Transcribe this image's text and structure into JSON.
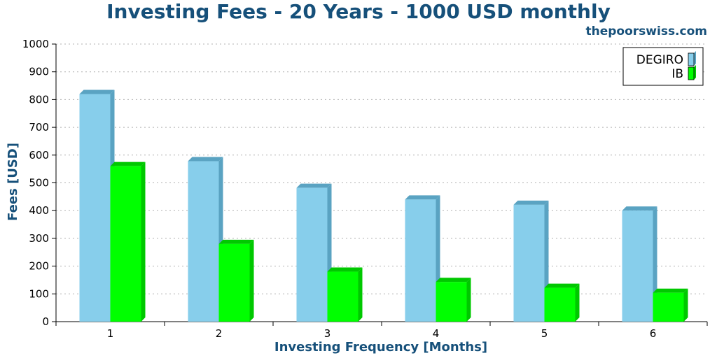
{
  "header": {
    "title": "Investing Fees - 20 Years - 1000 USD monthly",
    "source": "thepoorswiss.com"
  },
  "chart_data": {
    "type": "bar",
    "title": "Investing Fees - 20 Years - 1000 USD monthly",
    "xlabel": "Investing Frequency [Months]",
    "ylabel": "Fees [USD]",
    "categories": [
      "1",
      "2",
      "3",
      "4",
      "5",
      "6"
    ],
    "ylim": [
      0,
      1000
    ],
    "yticks": [
      0,
      100,
      200,
      300,
      400,
      500,
      600,
      700,
      800,
      900,
      1000
    ],
    "grid": true,
    "legend_position": "top-right",
    "series": [
      {
        "name": "DEGIRO",
        "values": [
          820,
          578,
          482,
          440,
          421,
          400
        ],
        "color": "#87ceeb",
        "side_color": "#5aa3c2"
      },
      {
        "name": "IB",
        "values": [
          560,
          280,
          180,
          143,
          122,
          104
        ],
        "color": "#00ff00",
        "side_color": "#00c800"
      }
    ]
  }
}
